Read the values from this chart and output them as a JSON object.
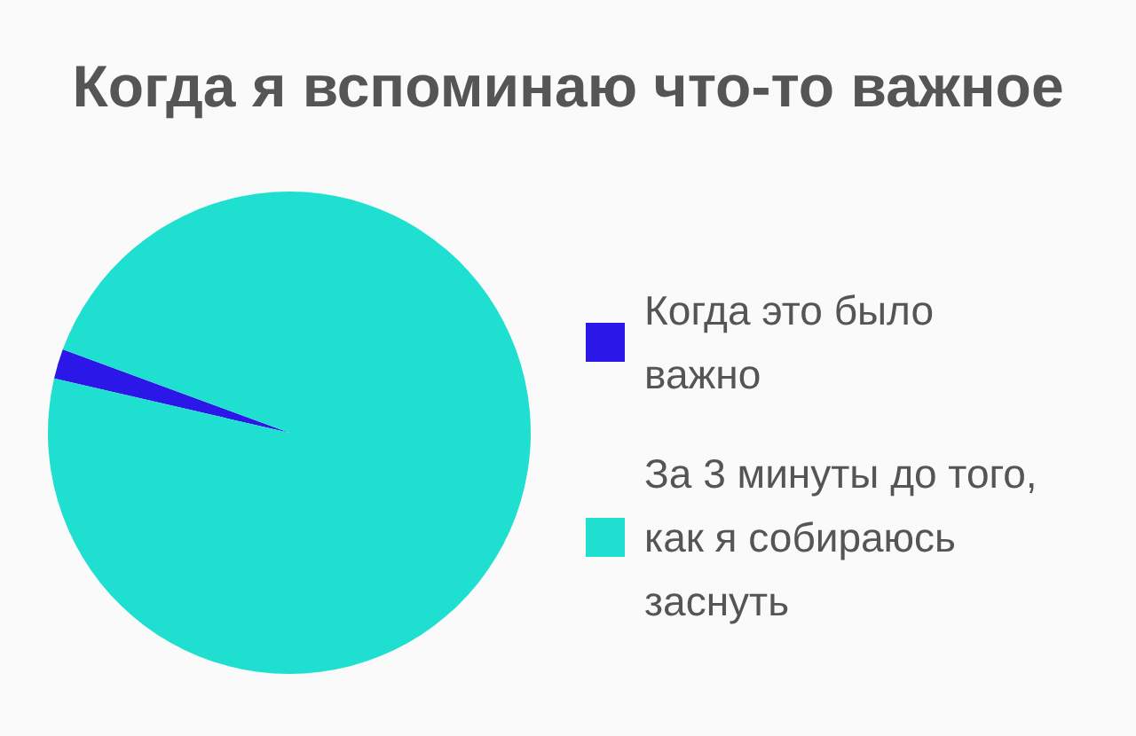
{
  "chart_data": {
    "type": "pie",
    "title": "Когда я вспоминаю что-то важное",
    "categories": [
      "Когда это было важно",
      "За 3 минуты до того, как я собираюсь заснуть"
    ],
    "values": [
      2,
      98
    ],
    "colors": [
      "#2b17e8",
      "#1fe0d0"
    ],
    "legend": "right"
  }
}
